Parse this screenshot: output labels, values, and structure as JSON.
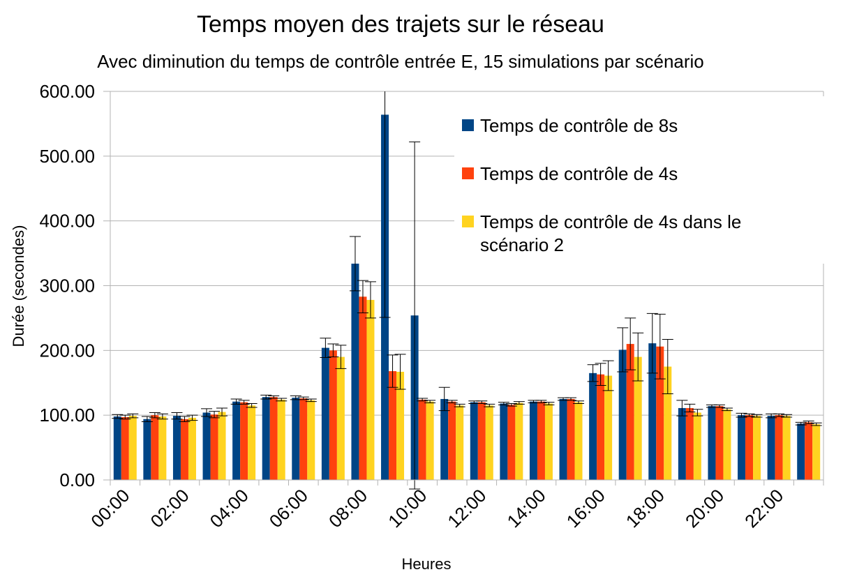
{
  "chart_data": {
    "type": "bar",
    "title": "Temps moyen des trajets sur le réseau",
    "subtitle": "Avec diminution du temps de contrôle entrée E, 15 simulations par scénario",
    "xlabel": "Heures",
    "ylabel": "Durée (secondes)",
    "ylim": [
      0,
      600
    ],
    "yticks": [
      "0.00",
      "100.00",
      "200.00",
      "300.00",
      "400.00",
      "500.00",
      "600.00"
    ],
    "xtick_labels": [
      "00:00",
      "02:00",
      "04:00",
      "06:00",
      "08:00",
      "10:00",
      "12:00",
      "14:00",
      "16:00",
      "18:00",
      "20:00",
      "22:00"
    ],
    "grid": true,
    "legend_position": "top-right",
    "categories": [
      "00:00",
      "01:00",
      "02:00",
      "03:00",
      "04:00",
      "05:00",
      "06:00",
      "07:00",
      "08:00",
      "09:00",
      "10:00",
      "11:00",
      "12:00",
      "13:00",
      "14:00",
      "15:00",
      "16:00",
      "17:00",
      "18:00",
      "19:00",
      "20:00",
      "21:00",
      "22:00",
      "23:00"
    ],
    "series": [
      {
        "name": "Temps de contrôle de 8s",
        "color": "#004586",
        "values": [
          98,
          94,
          99,
          104,
          121,
          128,
          127,
          204,
          334,
          564,
          254,
          125,
          120,
          118,
          121,
          125,
          165,
          201,
          211,
          111,
          114,
          100,
          99,
          87
        ],
        "errors": [
          3,
          4,
          5,
          6,
          4,
          3,
          3,
          15,
          42,
          313,
          268,
          18,
          2,
          2,
          2,
          2,
          13,
          34,
          46,
          12,
          2,
          3,
          3,
          2
        ]
      },
      {
        "name": "Temps de contrôle de 4s",
        "color": "#ff420e",
        "values": [
          97,
          100,
          94,
          101,
          120,
          128,
          126,
          200,
          283,
          168,
          124,
          121,
          120,
          116,
          121,
          125,
          163,
          210,
          206,
          111,
          114,
          100,
          100,
          89
        ],
        "errors": [
          3,
          4,
          4,
          5,
          3,
          2,
          2,
          10,
          25,
          25,
          2,
          2,
          2,
          2,
          2,
          2,
          17,
          40,
          50,
          6,
          2,
          2,
          2,
          2
        ]
      },
      {
        "name": "Temps de contrôle de 4s dans le scénario 2",
        "color": "#ffd320",
        "values": [
          99,
          98,
          96,
          105,
          115,
          124,
          123,
          190,
          278,
          167,
          121,
          115,
          115,
          119,
          118,
          120,
          161,
          190,
          175,
          104,
          109,
          99,
          99,
          86
        ],
        "errors": [
          3,
          4,
          4,
          6,
          3,
          2,
          2,
          18,
          28,
          27,
          2,
          2,
          2,
          2,
          2,
          2,
          23,
          37,
          42,
          5,
          2,
          2,
          2,
          2
        ]
      }
    ]
  }
}
